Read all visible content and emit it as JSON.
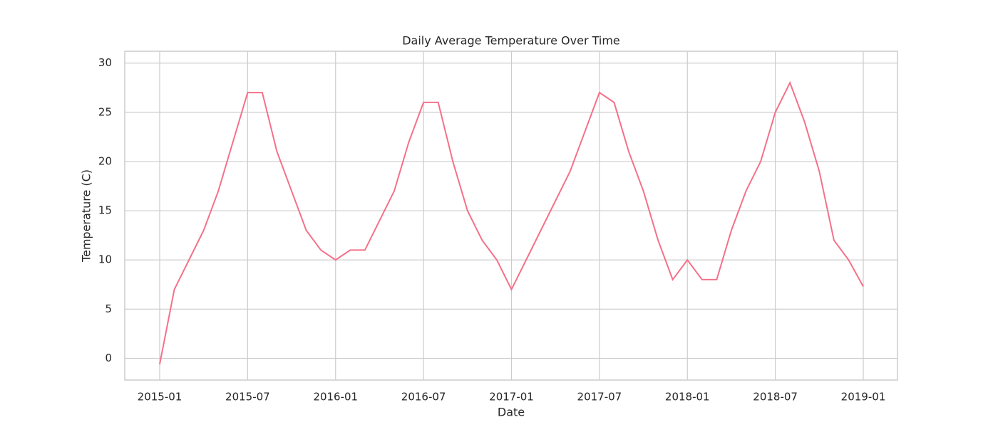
{
  "chart_data": {
    "type": "line",
    "title": "Daily Average Temperature Over Time",
    "x_label": "Date",
    "y_label": "Temperature (C)",
    "x": [
      "2015-01",
      "2015-02",
      "2015-03",
      "2015-04",
      "2015-05",
      "2015-06",
      "2015-07",
      "2015-08",
      "2015-09",
      "2015-10",
      "2015-11",
      "2015-12",
      "2016-01",
      "2016-02",
      "2016-03",
      "2016-04",
      "2016-05",
      "2016-06",
      "2016-07",
      "2016-08",
      "2016-09",
      "2016-10",
      "2016-11",
      "2016-12",
      "2017-01",
      "2017-02",
      "2017-03",
      "2017-04",
      "2017-05",
      "2017-06",
      "2017-07",
      "2017-08",
      "2017-09",
      "2017-10",
      "2017-11",
      "2017-12",
      "2018-01",
      "2018-02",
      "2018-03",
      "2018-04",
      "2018-05",
      "2018-06",
      "2018-07",
      "2018-08",
      "2018-09",
      "2018-10",
      "2018-11",
      "2018-12",
      "2019-01"
    ],
    "series": [
      {
        "name": "Temperature",
        "color": "#f4718a",
        "values": [
          -0.6,
          7,
          10,
          13,
          17,
          22,
          27,
          27,
          21,
          17,
          13,
          11,
          10,
          11,
          11,
          14,
          17,
          22,
          26,
          26,
          20,
          15,
          12,
          10,
          7,
          10,
          13,
          16,
          19,
          23,
          27,
          26,
          21,
          17,
          12,
          8,
          10,
          8,
          8,
          13,
          17,
          20,
          25,
          28,
          24,
          19,
          12,
          10,
          7.3
        ]
      }
    ],
    "xticks": [
      "2015-01",
      "2015-07",
      "2016-01",
      "2016-07",
      "2017-01",
      "2017-07",
      "2018-01",
      "2018-07",
      "2019-01"
    ],
    "ylim": [
      -2.2,
      31.2
    ],
    "yticks": [
      0,
      5,
      10,
      15,
      20,
      25,
      30
    ],
    "grid": true
  }
}
